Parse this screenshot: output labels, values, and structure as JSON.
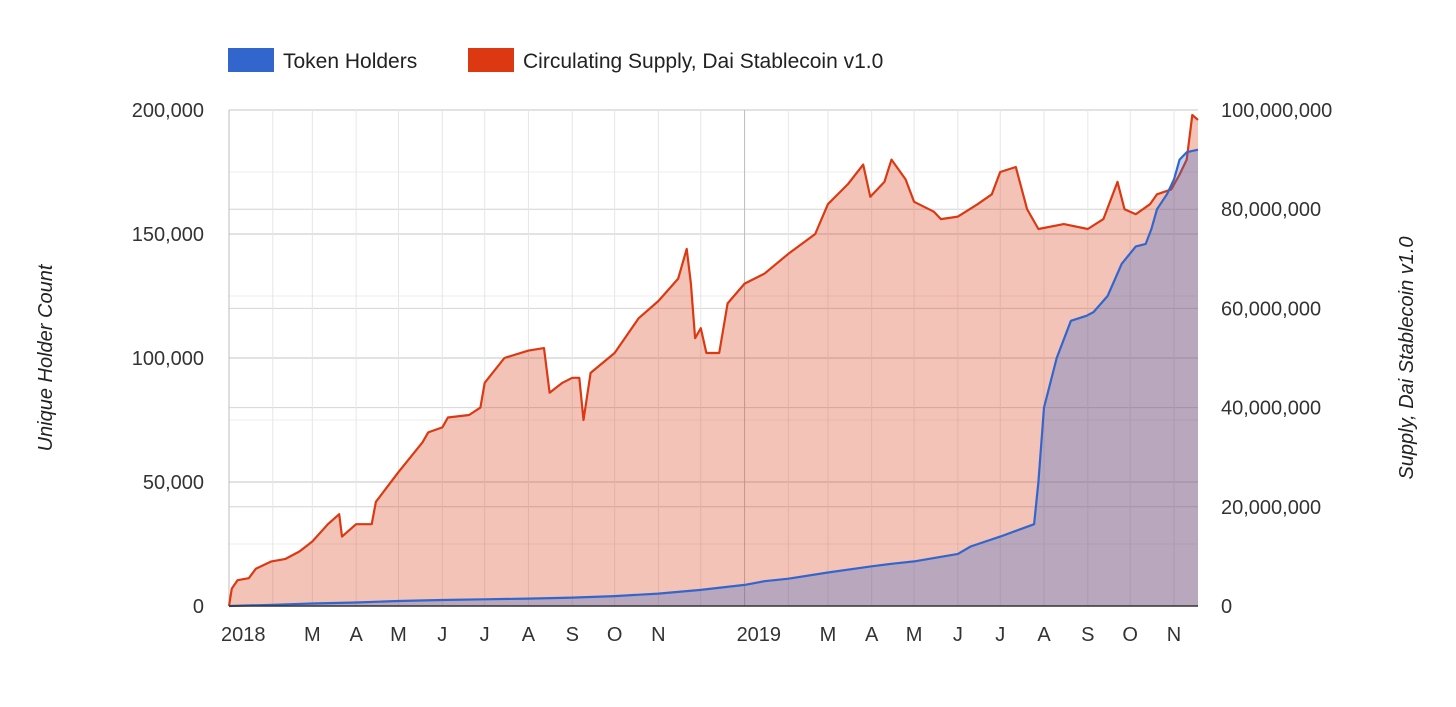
{
  "chart_data": {
    "type": "area",
    "legend_position": "top",
    "grid": true,
    "x_axis": {
      "range": [
        "2018-01-01",
        "2019-11-18"
      ],
      "tick_labels": [
        {
          "date": "2018-01-01",
          "label": "2018"
        },
        {
          "date": "2018-03-01",
          "label": "M"
        },
        {
          "date": "2018-04-01",
          "label": "A"
        },
        {
          "date": "2018-05-01",
          "label": "M"
        },
        {
          "date": "2018-06-01",
          "label": "J"
        },
        {
          "date": "2018-07-01",
          "label": "J"
        },
        {
          "date": "2018-08-01",
          "label": "A"
        },
        {
          "date": "2018-09-01",
          "label": "S"
        },
        {
          "date": "2018-10-01",
          "label": "O"
        },
        {
          "date": "2018-11-01",
          "label": "N"
        },
        {
          "date": "2019-01-01",
          "label": "2019"
        },
        {
          "date": "2019-03-01",
          "label": "M"
        },
        {
          "date": "2019-04-01",
          "label": "A"
        },
        {
          "date": "2019-05-01",
          "label": "M"
        },
        {
          "date": "2019-06-01",
          "label": "J"
        },
        {
          "date": "2019-07-01",
          "label": "J"
        },
        {
          "date": "2019-08-01",
          "label": "A"
        },
        {
          "date": "2019-09-01",
          "label": "S"
        },
        {
          "date": "2019-10-01",
          "label": "O"
        },
        {
          "date": "2019-11-01",
          "label": "N"
        }
      ],
      "major_gridlines": [
        "2018-01-01",
        "2019-01-01"
      ],
      "minor_gridlines": [
        "2018-02-01",
        "2018-03-01",
        "2018-04-01",
        "2018-05-01",
        "2018-06-01",
        "2018-07-01",
        "2018-08-01",
        "2018-09-01",
        "2018-10-01",
        "2018-11-01",
        "2018-12-01",
        "2019-02-01",
        "2019-03-01",
        "2019-04-01",
        "2019-05-01",
        "2019-06-01",
        "2019-07-01",
        "2019-08-01",
        "2019-09-01",
        "2019-10-01",
        "2019-11-01"
      ]
    },
    "y_left": {
      "title": "Unique Holder Count",
      "range": [
        0,
        200000
      ],
      "ticks": [
        0,
        50000,
        100000,
        150000,
        200000
      ],
      "tick_labels": [
        "0",
        "50,000",
        "100,000",
        "150,000",
        "200,000"
      ]
    },
    "y_right": {
      "title": "Supply, Dai Stablecoin v1.0",
      "range": [
        0,
        100000000
      ],
      "ticks": [
        0,
        20000000,
        40000000,
        60000000,
        80000000,
        100000000
      ],
      "tick_labels": [
        "0",
        "20,000,000",
        "40,000,000",
        "60,000,000",
        "80,000,000",
        "100,000,000"
      ]
    },
    "series": [
      {
        "name": "Token Holders",
        "axis": "left",
        "color": "#3366cc",
        "points": [
          [
            "2018-01-01",
            0
          ],
          [
            "2018-02-01",
            500
          ],
          [
            "2018-03-01",
            1000
          ],
          [
            "2018-04-01",
            1400
          ],
          [
            "2018-05-01",
            2000
          ],
          [
            "2018-06-01",
            2400
          ],
          [
            "2018-07-01",
            2700
          ],
          [
            "2018-08-01",
            3000
          ],
          [
            "2018-09-01",
            3400
          ],
          [
            "2018-10-01",
            4000
          ],
          [
            "2018-11-01",
            5000
          ],
          [
            "2018-12-01",
            6500
          ],
          [
            "2019-01-01",
            8500
          ],
          [
            "2019-01-15",
            10000
          ],
          [
            "2019-02-01",
            11000
          ],
          [
            "2019-03-01",
            13500
          ],
          [
            "2019-04-01",
            16000
          ],
          [
            "2019-04-15",
            17000
          ],
          [
            "2019-05-01",
            18000
          ],
          [
            "2019-06-01",
            21000
          ],
          [
            "2019-06-10",
            24000
          ],
          [
            "2019-07-01",
            28000
          ],
          [
            "2019-07-25",
            33000
          ],
          [
            "2019-07-28",
            50000
          ],
          [
            "2019-08-01",
            80000
          ],
          [
            "2019-08-10",
            100000
          ],
          [
            "2019-08-20",
            115000
          ],
          [
            "2019-08-31",
            117000
          ],
          [
            "2019-09-05",
            118500
          ],
          [
            "2019-09-15",
            125000
          ],
          [
            "2019-09-25",
            138000
          ],
          [
            "2019-10-05",
            145000
          ],
          [
            "2019-10-12",
            146000
          ],
          [
            "2019-10-16",
            152000
          ],
          [
            "2019-10-20",
            160000
          ],
          [
            "2019-10-27",
            166000
          ],
          [
            "2019-11-01",
            172000
          ],
          [
            "2019-11-05",
            180000
          ],
          [
            "2019-11-10",
            183000
          ],
          [
            "2019-11-18",
            184000
          ]
        ]
      },
      {
        "name": "Circulating Supply, Dai Stablecoin v1.0",
        "axis": "right",
        "color": "#dc3912",
        "points": [
          [
            "2018-01-01",
            0
          ],
          [
            "2018-01-03",
            3500000
          ],
          [
            "2018-01-07",
            5200000
          ],
          [
            "2018-01-15",
            5600000
          ],
          [
            "2018-01-20",
            7500000
          ],
          [
            "2018-01-31",
            9000000
          ],
          [
            "2018-02-10",
            9500000
          ],
          [
            "2018-02-20",
            11000000
          ],
          [
            "2018-03-01",
            13000000
          ],
          [
            "2018-03-12",
            16500000
          ],
          [
            "2018-03-20",
            18500000
          ],
          [
            "2018-03-22",
            14000000
          ],
          [
            "2018-04-01",
            16500000
          ],
          [
            "2018-04-12",
            16500000
          ],
          [
            "2018-04-15",
            21000000
          ],
          [
            "2018-05-01",
            27000000
          ],
          [
            "2018-05-18",
            33000000
          ],
          [
            "2018-05-22",
            35000000
          ],
          [
            "2018-06-01",
            36000000
          ],
          [
            "2018-06-05",
            38000000
          ],
          [
            "2018-06-20",
            38500000
          ],
          [
            "2018-06-28",
            40000000
          ],
          [
            "2018-07-01",
            45000000
          ],
          [
            "2018-07-15",
            50000000
          ],
          [
            "2018-08-01",
            51500000
          ],
          [
            "2018-08-12",
            52000000
          ],
          [
            "2018-08-16",
            43000000
          ],
          [
            "2018-08-25",
            45000000
          ],
          [
            "2018-09-01",
            46000000
          ],
          [
            "2018-09-06",
            46000000
          ],
          [
            "2018-09-09",
            37500000
          ],
          [
            "2018-09-14",
            47000000
          ],
          [
            "2018-10-01",
            51000000
          ],
          [
            "2018-10-18",
            58000000
          ],
          [
            "2018-11-01",
            61500000
          ],
          [
            "2018-11-15",
            66000000
          ],
          [
            "2018-11-21",
            72000000
          ],
          [
            "2018-11-24",
            65000000
          ],
          [
            "2018-11-27",
            54000000
          ],
          [
            "2018-12-01",
            56000000
          ],
          [
            "2018-12-05",
            51000000
          ],
          [
            "2018-12-14",
            51000000
          ],
          [
            "2018-12-20",
            61000000
          ],
          [
            "2019-01-01",
            65000000
          ],
          [
            "2019-01-15",
            67000000
          ],
          [
            "2019-02-01",
            71000000
          ],
          [
            "2019-02-20",
            75000000
          ],
          [
            "2019-03-01",
            81000000
          ],
          [
            "2019-03-15",
            85000000
          ],
          [
            "2019-03-26",
            89000000
          ],
          [
            "2019-03-31",
            82500000
          ],
          [
            "2019-04-10",
            85500000
          ],
          [
            "2019-04-15",
            90000000
          ],
          [
            "2019-04-25",
            86000000
          ],
          [
            "2019-05-01",
            81500000
          ],
          [
            "2019-05-15",
            79500000
          ],
          [
            "2019-05-20",
            78000000
          ],
          [
            "2019-06-01",
            78500000
          ],
          [
            "2019-06-15",
            81000000
          ],
          [
            "2019-06-25",
            83000000
          ],
          [
            "2019-07-01",
            87500000
          ],
          [
            "2019-07-12",
            88500000
          ],
          [
            "2019-07-20",
            80000000
          ],
          [
            "2019-07-28",
            76000000
          ],
          [
            "2019-08-15",
            77000000
          ],
          [
            "2019-09-01",
            76000000
          ],
          [
            "2019-09-12",
            78000000
          ],
          [
            "2019-09-22",
            85500000
          ],
          [
            "2019-09-27",
            80000000
          ],
          [
            "2019-10-05",
            79000000
          ],
          [
            "2019-10-15",
            81000000
          ],
          [
            "2019-10-20",
            83000000
          ],
          [
            "2019-10-30",
            84000000
          ],
          [
            "2019-11-05",
            87000000
          ],
          [
            "2019-11-10",
            90000000
          ],
          [
            "2019-11-14",
            99000000
          ],
          [
            "2019-11-18",
            98000000
          ]
        ]
      }
    ]
  }
}
